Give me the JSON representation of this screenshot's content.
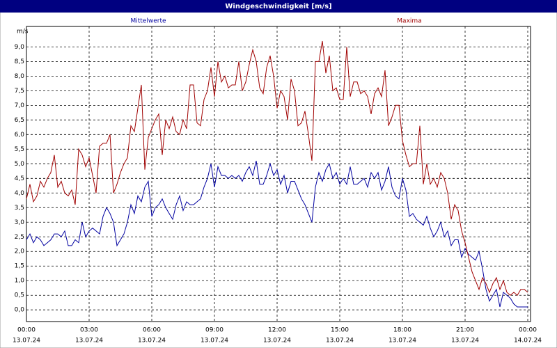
{
  "chart_data": {
    "type": "line",
    "title": "Windgeschwindigkeit [m/s]",
    "ylabel": "m/s",
    "grid": true,
    "xlim": [
      0,
      1448
    ],
    "ylim": [
      -0.4,
      9.7
    ],
    "yticks": [
      {
        "value": 0,
        "label": "0,0"
      },
      {
        "value": 0.5,
        "label": "0,5"
      },
      {
        "value": 1,
        "label": "1,0"
      },
      {
        "value": 1.5,
        "label": "1,5"
      },
      {
        "value": 2,
        "label": "2,0"
      },
      {
        "value": 2.5,
        "label": "2,5"
      },
      {
        "value": 3,
        "label": "3,0"
      },
      {
        "value": 3.5,
        "label": "3,5"
      },
      {
        "value": 4,
        "label": "4,0"
      },
      {
        "value": 4.5,
        "label": "4,5"
      },
      {
        "value": 5,
        "label": "5,0"
      },
      {
        "value": 5.5,
        "label": "5,5"
      },
      {
        "value": 6,
        "label": "6,0"
      },
      {
        "value": 6.5,
        "label": "6,5"
      },
      {
        "value": 7,
        "label": "7,0"
      },
      {
        "value": 7.5,
        "label": "7,5"
      },
      {
        "value": 8,
        "label": "8,0"
      },
      {
        "value": 8.5,
        "label": "8,5"
      },
      {
        "value": 9,
        "label": "9,0"
      }
    ],
    "xticks": [
      {
        "value": 0,
        "label": "00:00"
      },
      {
        "value": 180,
        "label": "03:00"
      },
      {
        "value": 360,
        "label": "06:00"
      },
      {
        "value": 540,
        "label": "09:00"
      },
      {
        "value": 720,
        "label": "12:00"
      },
      {
        "value": 900,
        "label": "15:00"
      },
      {
        "value": 1080,
        "label": "18:00"
      },
      {
        "value": 1260,
        "label": "21:00"
      },
      {
        "value": 1440,
        "label": "00:00"
      }
    ],
    "xtick_dates": [
      "13.07.24",
      "13.07.24",
      "13.07.24",
      "13.07.24",
      "13.07.24",
      "13.07.24",
      "13.07.24",
      "13.07.24",
      "14.07.24"
    ],
    "x": [
      0,
      10,
      20,
      30,
      40,
      50,
      60,
      70,
      80,
      90,
      100,
      110,
      120,
      130,
      140,
      150,
      160,
      170,
      180,
      190,
      200,
      210,
      220,
      230,
      240,
      250,
      260,
      270,
      280,
      290,
      300,
      310,
      320,
      330,
      340,
      350,
      360,
      370,
      380,
      390,
      400,
      410,
      420,
      430,
      440,
      450,
      460,
      470,
      480,
      490,
      500,
      510,
      520,
      530,
      540,
      550,
      560,
      570,
      580,
      590,
      600,
      610,
      620,
      630,
      640,
      650,
      660,
      670,
      680,
      690,
      700,
      710,
      720,
      730,
      740,
      750,
      760,
      770,
      780,
      790,
      800,
      810,
      820,
      830,
      840,
      850,
      860,
      870,
      880,
      890,
      900,
      910,
      920,
      930,
      940,
      950,
      960,
      970,
      980,
      990,
      1000,
      1010,
      1020,
      1030,
      1040,
      1050,
      1060,
      1070,
      1080,
      1090,
      1100,
      1110,
      1120,
      1130,
      1140,
      1150,
      1160,
      1170,
      1180,
      1190,
      1200,
      1210,
      1220,
      1230,
      1240,
      1250,
      1260,
      1270,
      1280,
      1290,
      1300,
      1310,
      1320,
      1330,
      1340,
      1350,
      1360,
      1370,
      1380,
      1390,
      1400,
      1410,
      1420,
      1430,
      1440
    ],
    "series": [
      {
        "name": "Mittelwerte",
        "color": "#0000a0",
        "values": [
          2.4,
          2.6,
          2.3,
          2.5,
          2.4,
          2.2,
          2.3,
          2.4,
          2.6,
          2.6,
          2.5,
          2.7,
          2.2,
          2.2,
          2.4,
          2.3,
          3.0,
          2.5,
          2.7,
          2.8,
          2.7,
          2.6,
          3.2,
          3.5,
          3.3,
          3.0,
          2.2,
          2.4,
          2.6,
          3.0,
          3.6,
          3.3,
          3.9,
          3.7,
          4.2,
          4.4,
          3.2,
          3.5,
          3.6,
          3.8,
          3.5,
          3.3,
          3.1,
          3.6,
          3.9,
          3.4,
          3.7,
          3.6,
          3.6,
          3.7,
          3.8,
          4.2,
          4.5,
          5.0,
          4.2,
          4.9,
          4.6,
          4.6,
          4.5,
          4.6,
          4.5,
          4.6,
          4.4,
          4.7,
          4.9,
          4.6,
          5.1,
          4.3,
          4.3,
          4.6,
          5.0,
          4.6,
          4.8,
          4.3,
          4.6,
          4.0,
          4.4,
          4.4,
          4.1,
          3.8,
          3.6,
          3.3,
          3.0,
          4.2,
          4.7,
          4.4,
          4.8,
          5.0,
          4.5,
          4.7,
          4.3,
          4.5,
          4.3,
          4.9,
          4.3,
          4.3,
          4.4,
          4.5,
          4.2,
          4.7,
          4.5,
          4.7,
          4.1,
          4.4,
          4.9,
          4.2,
          3.9,
          3.8,
          4.5,
          4.1,
          3.2,
          3.3,
          3.1,
          3.0,
          2.9,
          3.2,
          2.8,
          2.5,
          2.7,
          3.0,
          2.5,
          2.7,
          2.2,
          2.4,
          2.4,
          1.8,
          2.1,
          1.9,
          1.8,
          1.7,
          2.0,
          1.4,
          0.7,
          0.3,
          0.5,
          0.7,
          0.1,
          0.6,
          0.5,
          0.4,
          0.2,
          0.1,
          0.1,
          0.1,
          0.1
        ]
      },
      {
        "name": "Maxima",
        "color": "#a00000",
        "values": [
          3.8,
          4.3,
          3.7,
          3.9,
          4.4,
          4.2,
          4.5,
          4.7,
          5.3,
          4.2,
          4.4,
          4.0,
          3.9,
          4.1,
          3.6,
          5.5,
          5.3,
          4.9,
          5.2,
          4.6,
          4.0,
          5.6,
          5.7,
          5.7,
          6.0,
          4.0,
          4.3,
          4.7,
          5.0,
          5.2,
          6.3,
          6.1,
          6.9,
          7.7,
          4.8,
          5.9,
          6.2,
          6.5,
          6.7,
          5.3,
          6.5,
          6.2,
          6.6,
          6.1,
          6.0,
          6.5,
          6.2,
          7.7,
          7.7,
          6.4,
          6.3,
          7.2,
          7.5,
          8.3,
          7.3,
          8.5,
          7.8,
          8.0,
          7.6,
          7.7,
          7.7,
          8.5,
          7.5,
          7.8,
          8.4,
          8.9,
          8.5,
          7.6,
          7.4,
          8.3,
          8.7,
          8.0,
          6.9,
          7.5,
          7.3,
          6.5,
          7.9,
          7.5,
          6.3,
          6.4,
          6.8,
          6.0,
          5.1,
          8.5,
          8.5,
          9.2,
          8.1,
          8.7,
          7.5,
          7.6,
          7.2,
          7.2,
          9.0,
          7.3,
          7.8,
          7.8,
          7.4,
          7.5,
          7.3,
          6.7,
          7.4,
          7.6,
          7.3,
          8.2,
          6.3,
          6.6,
          7.0,
          7.0,
          5.8,
          5.3,
          4.9,
          5.0,
          5.0,
          6.3,
          4.3,
          5.0,
          4.3,
          4.5,
          4.2,
          4.7,
          4.5,
          4.0,
          3.1,
          3.6,
          3.4,
          2.7,
          2.3,
          1.8,
          1.3,
          1.0,
          0.7,
          1.1,
          0.9,
          0.6,
          0.9,
          1.1,
          0.7,
          1.0,
          0.6,
          0.5,
          0.6,
          0.5,
          0.7,
          0.7,
          0.6
        ]
      }
    ]
  }
}
